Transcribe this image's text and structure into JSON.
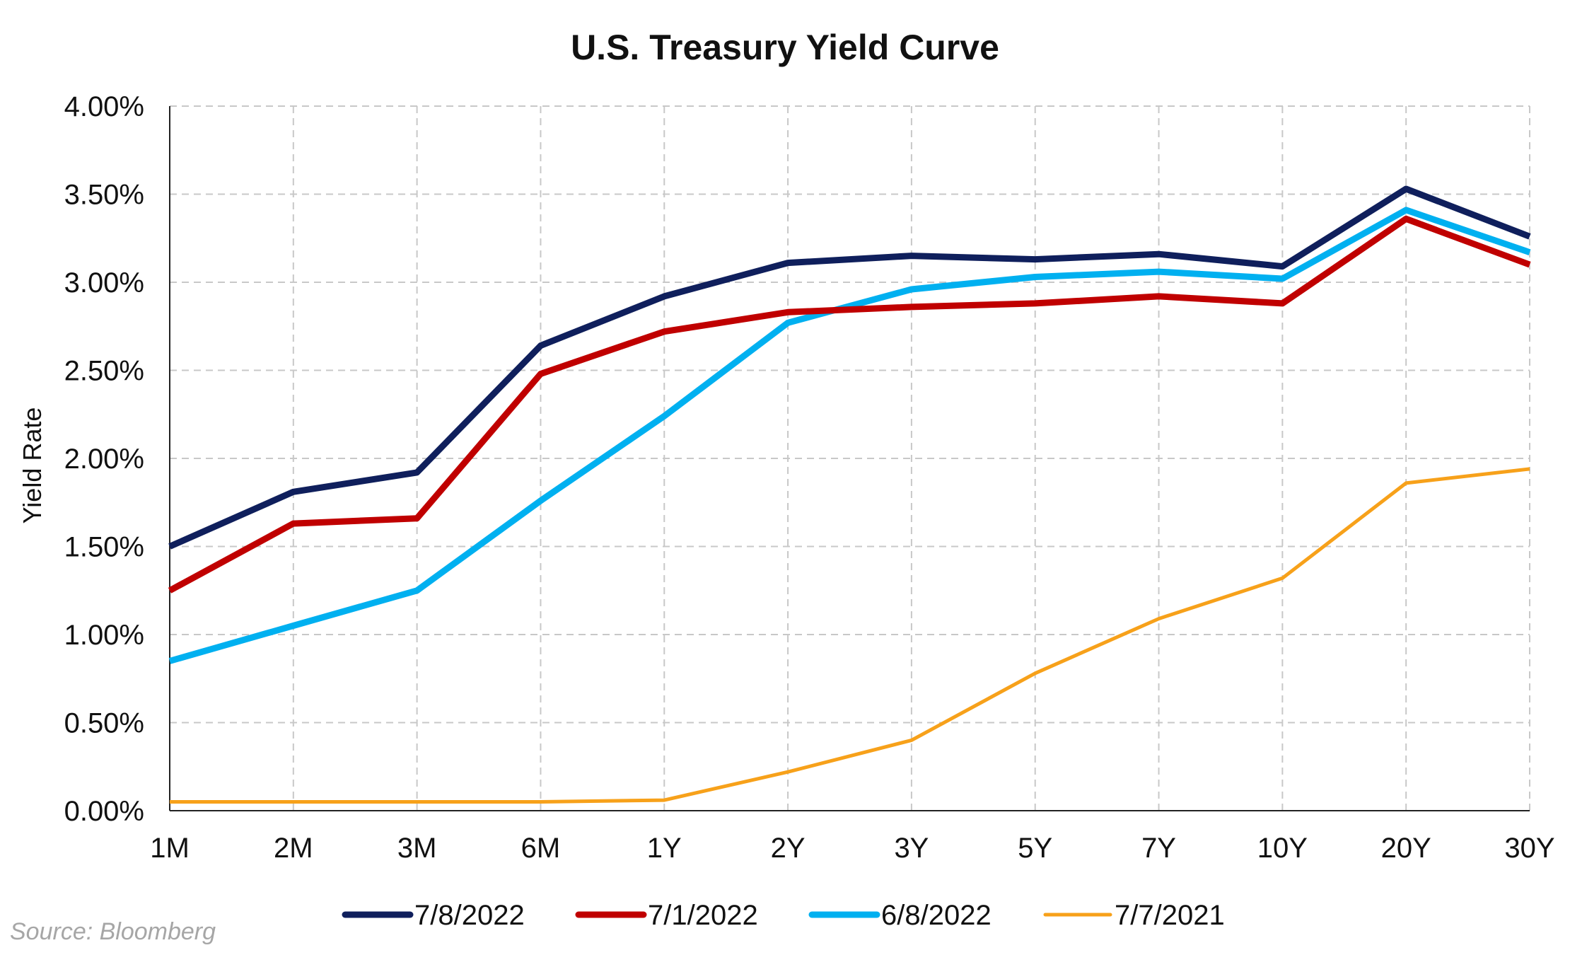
{
  "chart_data": {
    "type": "line",
    "title": "U.S. Treasury Yield Curve",
    "xlabel": "",
    "ylabel": "Yield Rate",
    "categories": [
      "1M",
      "2M",
      "3M",
      "6M",
      "1Y",
      "2Y",
      "3Y",
      "5Y",
      "7Y",
      "10Y",
      "20Y",
      "30Y"
    ],
    "ylim": [
      0,
      4
    ],
    "y_ticks": [
      {
        "value": 0.0,
        "label": "0.00%"
      },
      {
        "value": 0.5,
        "label": "0.50%"
      },
      {
        "value": 1.0,
        "label": "1.00%"
      },
      {
        "value": 1.5,
        "label": "1.50%"
      },
      {
        "value": 2.0,
        "label": "2.00%"
      },
      {
        "value": 2.5,
        "label": "2.50%"
      },
      {
        "value": 3.0,
        "label": "3.00%"
      },
      {
        "value": 3.5,
        "label": "3.50%"
      },
      {
        "value": 4.0,
        "label": "4.00%"
      }
    ],
    "grid": true,
    "legend_position": "bottom",
    "series": [
      {
        "name": "7/8/2022",
        "color": "#0f1f5c",
        "values": [
          1.5,
          1.81,
          1.92,
          2.64,
          2.92,
          3.11,
          3.15,
          3.13,
          3.16,
          3.09,
          3.53,
          3.26
        ]
      },
      {
        "name": "7/1/2022",
        "color": "#c00000",
        "values": [
          1.25,
          1.63,
          1.66,
          2.48,
          2.72,
          2.83,
          2.86,
          2.88,
          2.92,
          2.88,
          3.36,
          3.1
        ]
      },
      {
        "name": "6/8/2022",
        "color": "#00b0f0",
        "values": [
          0.85,
          1.05,
          1.25,
          1.76,
          2.24,
          2.77,
          2.96,
          3.03,
          3.06,
          3.02,
          3.41,
          3.17
        ]
      },
      {
        "name": "7/7/2021",
        "color": "#f7a11a",
        "values": [
          0.05,
          0.05,
          0.05,
          0.05,
          0.06,
          0.22,
          0.4,
          0.78,
          1.09,
          1.32,
          1.86,
          1.94
        ]
      }
    ]
  },
  "source_note": "Source: Bloomberg"
}
